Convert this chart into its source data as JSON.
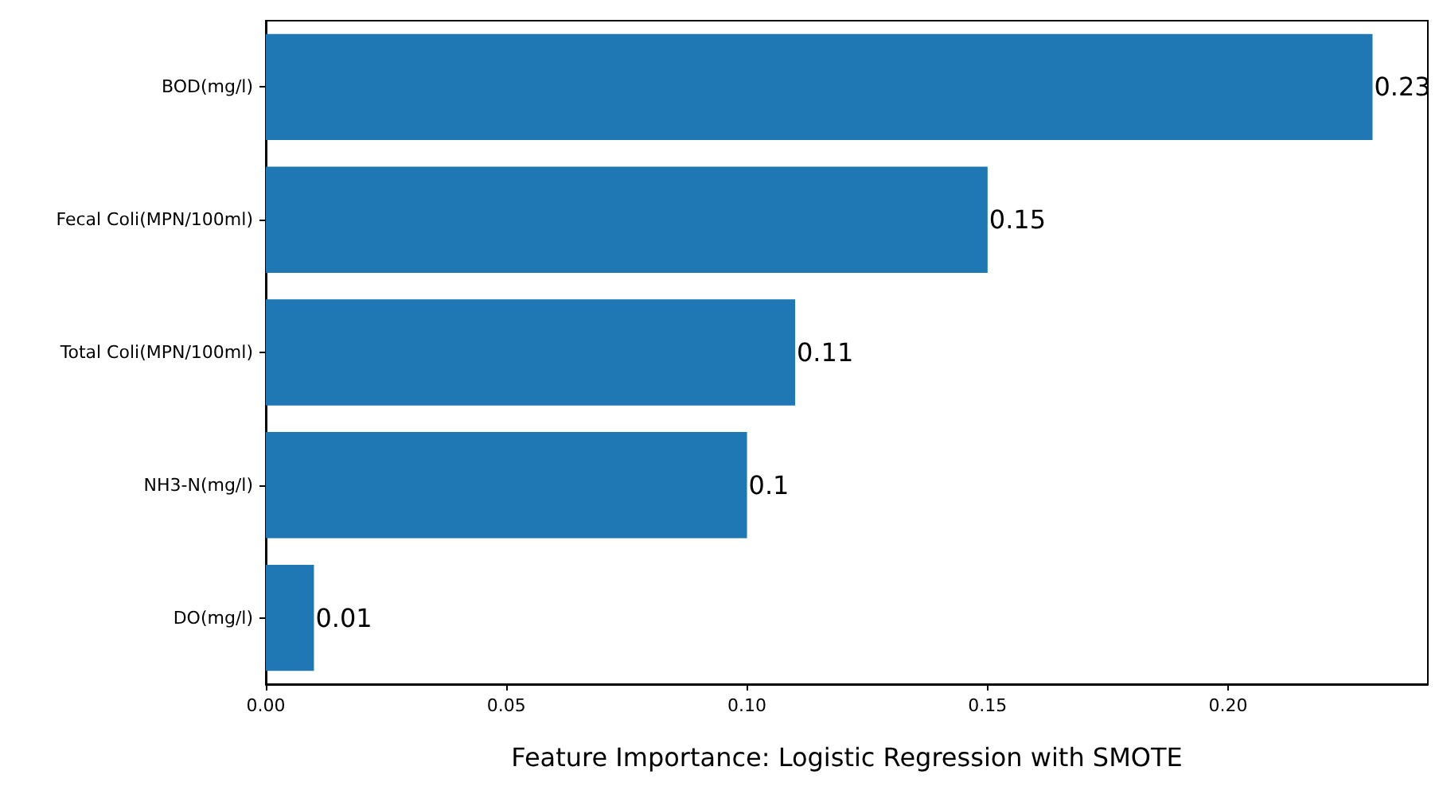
{
  "chart_data": {
    "type": "bar",
    "orientation": "horizontal",
    "xlabel": "Feature Importance: Logistic Regression with SMOTE",
    "categories": [
      "BOD(mg/l)",
      "Fecal Coli(MPN/100ml)",
      "Total Coli(MPN/100ml)",
      "NH3-N(mg/l)",
      "DO(mg/l)"
    ],
    "values": [
      0.23,
      0.15,
      0.11,
      0.1,
      0.01
    ],
    "color": "#1f77b4",
    "xlim": [
      0,
      0.2415
    ],
    "xticks": [
      {
        "value": 0,
        "label": "0.00"
      },
      {
        "value": 0.05,
        "label": "0.05"
      },
      {
        "value": 0.1,
        "label": "0.10"
      },
      {
        "value": 0.15,
        "label": "0.15"
      },
      {
        "value": 0.2,
        "label": "0.20"
      }
    ],
    "data_labels": true,
    "grid": false
  }
}
